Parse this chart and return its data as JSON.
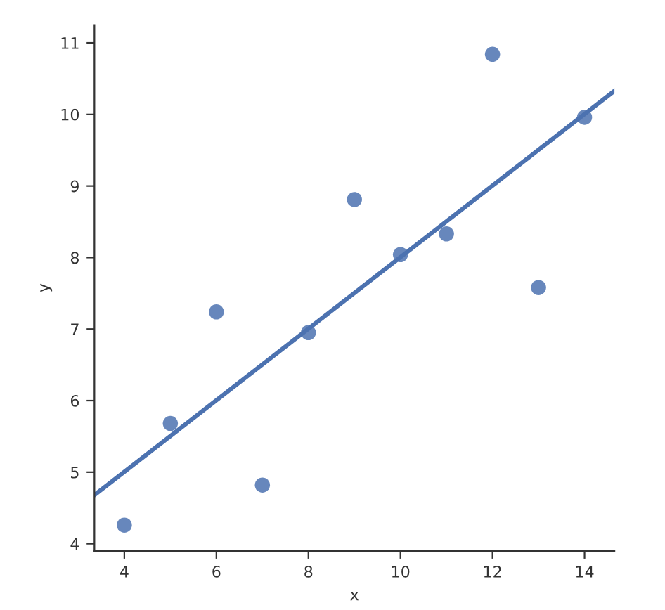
{
  "chart_data": {
    "type": "scatter",
    "xlabel": "x",
    "ylabel": "y",
    "xlim": [
      3.35,
      14.65
    ],
    "ylim": [
      3.9,
      11.25
    ],
    "xticks": [
      4,
      6,
      8,
      10,
      12,
      14
    ],
    "yticks": [
      4,
      5,
      6,
      7,
      8,
      9,
      10,
      11
    ],
    "grid": false,
    "legend": false,
    "series": [
      {
        "type": "scatter",
        "color": "#4c72b0",
        "marker": "circle",
        "x": [
          10,
          8,
          13,
          9,
          11,
          14,
          6,
          4,
          12,
          7,
          5
        ],
        "values": [
          8.04,
          6.95,
          7.58,
          8.81,
          8.33,
          9.96,
          7.24,
          4.26,
          10.84,
          4.82,
          5.68
        ]
      },
      {
        "type": "line",
        "color": "#4c72b0",
        "line_style": "solid",
        "x": [
          3.35,
          14.65
        ],
        "values": [
          4.68,
          10.33
        ]
      }
    ]
  }
}
